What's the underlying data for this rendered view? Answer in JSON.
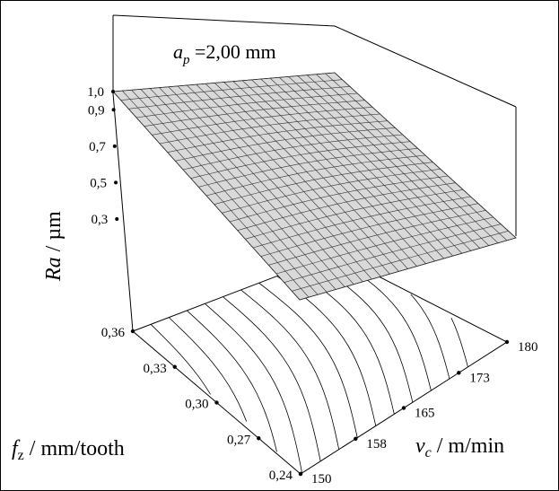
{
  "chart_data": {
    "type": "surface",
    "title_main": "a",
    "title_sub": "p",
    "title_rest": " =2,00 mm",
    "zlabel_main": "Ra",
    "zlabel_rest": " / µm",
    "xlabel_main": "v",
    "xlabel_sub": "c",
    "xlabel_rest": " / m/min",
    "ylabel_main": "f",
    "ylabel_sub": "z",
    "ylabel_rest": " / mm/tooth",
    "z_ticks": [
      "1,0",
      "0,9",
      "0,7",
      "0,5",
      "0,3"
    ],
    "z_tick_values": [
      1.0,
      0.9,
      0.7,
      0.5,
      0.3
    ],
    "y_ticks": [
      "0,36",
      "0,33",
      "0,30",
      "0,27",
      "0,24"
    ],
    "y_tick_values": [
      0.36,
      0.33,
      0.3,
      0.27,
      0.24
    ],
    "x_ticks": [
      "150",
      "158",
      "165",
      "173",
      "180"
    ],
    "x_tick_values": [
      150,
      158,
      165,
      173,
      180
    ],
    "xlim": [
      150,
      180
    ],
    "ylim": [
      0.24,
      0.36
    ],
    "zlim": [
      0.3,
      1.0
    ],
    "surface_corners": {
      "vc150_fz036": 1.0,
      "vc180_fz036": 0.8,
      "vc150_fz024": 0.55,
      "vc180_fz024": 0.3
    }
  }
}
